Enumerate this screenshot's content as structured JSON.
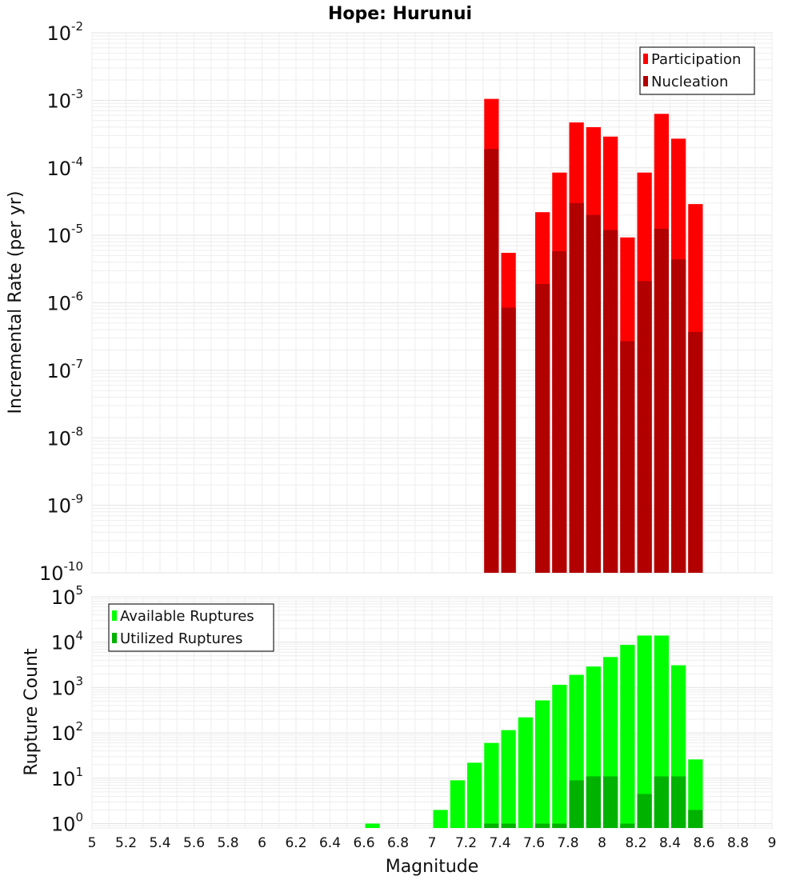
{
  "chart_data": [
    {
      "id": "rate",
      "type": "bar",
      "title": "Hope: Hurunui",
      "ylabel": "Incremental Rate (per yr)",
      "yscale": "log",
      "ylim": [
        1e-10,
        0.01
      ],
      "xlim": [
        5,
        9
      ],
      "y_tick_exponents": [
        -10,
        -9,
        -8,
        -7,
        -6,
        -5,
        -4,
        -3,
        -2
      ],
      "x": [
        7.35,
        7.45,
        7.55,
        7.65,
        7.75,
        7.85,
        7.95,
        8.05,
        8.15,
        8.25,
        8.35,
        8.45,
        8.55
      ],
      "legend_position": "top-right",
      "series": [
        {
          "name": "Participation",
          "color": "#ff0000",
          "values": [
            0.00105,
            5.5e-06,
            null,
            2.2e-05,
            8.5e-05,
            0.00047,
            0.0004,
            0.00029,
            9.3e-06,
            8.5e-05,
            0.00063,
            0.00027,
            2.9e-05
          ]
        },
        {
          "name": "Nucleation",
          "color": "#b20000",
          "values": [
            0.00019,
            8.5e-07,
            null,
            1.9e-06,
            5.8e-06,
            3e-05,
            2e-05,
            1.2e-05,
            2.7e-07,
            2.1e-06,
            1.25e-05,
            4.4e-06,
            3.7e-07
          ]
        }
      ],
      "grid": true
    },
    {
      "id": "count",
      "type": "bar",
      "xlabel": "Magnitude",
      "ylabel": "Rupture Count",
      "yscale": "log",
      "ylim": [
        0.8,
        100000.0
      ],
      "xlim": [
        5,
        9
      ],
      "y_tick_exponents": [
        0,
        1,
        2,
        3,
        4,
        5
      ],
      "x_ticks": [
        "5",
        "5.2",
        "5.4",
        "5.6",
        "5.8",
        "6",
        "6.2",
        "6.4",
        "6.6",
        "6.8",
        "7",
        "7.2",
        "7.4",
        "7.6",
        "7.8",
        "8",
        "8.2",
        "8.4",
        "8.6",
        "8.8",
        "9"
      ],
      "x": [
        6.65,
        7.05,
        7.15,
        7.25,
        7.35,
        7.45,
        7.55,
        7.65,
        7.75,
        7.85,
        7.95,
        8.05,
        8.15,
        8.25,
        8.35,
        8.45,
        8.55
      ],
      "legend_position": "top-left",
      "series": [
        {
          "name": "Available Ruptures",
          "color": "#00ff00",
          "values": [
            1,
            2,
            9,
            22,
            60,
            115,
            220,
            520,
            1150,
            1900,
            2900,
            4700,
            8700,
            14000,
            14000,
            3100,
            26
          ]
        },
        {
          "name": "Utilized Ruptures",
          "color": "#00b200",
          "values": [
            null,
            null,
            null,
            null,
            1,
            1,
            null,
            1,
            1,
            9,
            11,
            11,
            1,
            4.5,
            11,
            11,
            2
          ]
        }
      ],
      "grid": true
    }
  ]
}
